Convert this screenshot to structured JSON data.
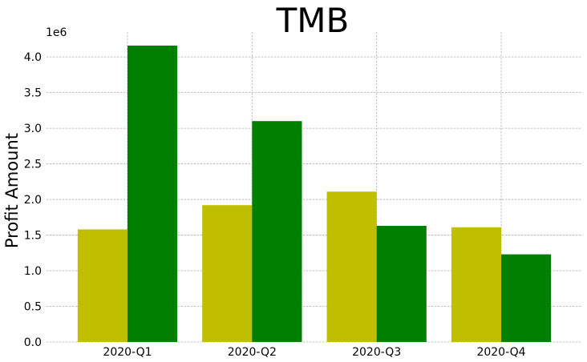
{
  "chart_data": {
    "type": "bar",
    "title": "TMB",
    "xlabel": "",
    "ylabel": "Profit Amount",
    "y_offset_label": "1e6",
    "categories": [
      "2020-Q1",
      "2020-Q2",
      "2020-Q3",
      "2020-Q4"
    ],
    "series": [
      {
        "values": [
          1580000,
          1920000,
          2110000,
          1610000
        ],
        "color": "#bfbf00"
      },
      {
        "values": [
          4160000,
          3100000,
          1630000,
          1230000
        ],
        "color": "#008000"
      }
    ],
    "ylim": [
      0,
      4350000
    ],
    "yticks": [
      0,
      500000,
      1000000,
      1500000,
      2000000,
      2500000,
      3000000,
      3500000,
      4000000
    ],
    "ytick_labels": [
      "0.0",
      "0.5",
      "1.0",
      "1.5",
      "2.0",
      "2.5",
      "3.0",
      "3.5",
      "4.0"
    ],
    "grid": true,
    "legend": "none"
  }
}
